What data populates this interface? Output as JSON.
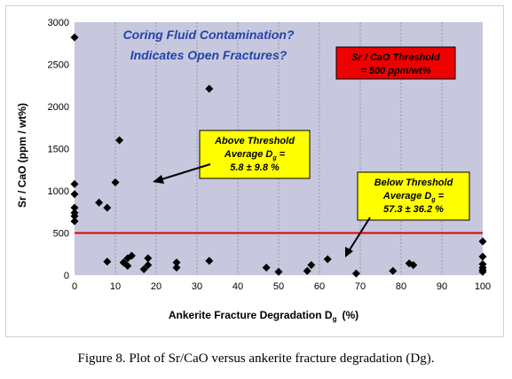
{
  "chart_data": {
    "type": "scatter",
    "xlabel": "Ankerite Fracture Degradation D",
    "xlabel_sub": "g",
    "xlabel_unit": "(%)",
    "ylabel": "Sr / CaO   (ppm / wt%)",
    "xlim": [
      0,
      100
    ],
    "ylim": [
      0,
      3000
    ],
    "x_ticks": [
      0,
      10,
      20,
      30,
      40,
      50,
      60,
      70,
      80,
      90,
      100
    ],
    "y_ticks": [
      0,
      500,
      1000,
      1500,
      2000,
      2500,
      3000
    ],
    "grid": "vertical",
    "threshold": {
      "value": 500,
      "color": "#e00000"
    },
    "annotations": {
      "question_line1": "Coring Fluid Contamination?",
      "question_line2": "Indicates Open Fractures?",
      "red_box_line1": "Sr / CaO Threshold",
      "red_box_line2": "= 500 ppm/wt%",
      "above_title": "Above Threshold",
      "above_avg_label": "Average D",
      "above_avg_sub": "g",
      "above_avg_eq": " =",
      "above_value": "5.8 ± 9.8 %",
      "below_title": "Below Threshold",
      "below_avg_label": "Average D",
      "below_avg_sub": "g",
      "below_avg_eq": " =",
      "below_value": "57.3 ± 36.2 %"
    },
    "colors": {
      "plot_bg": "#c7c7de",
      "point": "#000000",
      "question_text": "#2244aa",
      "red_box": "#ee0000",
      "yellow_box": "#ffff00"
    },
    "points": [
      [
        0,
        2820
      ],
      [
        0,
        1080
      ],
      [
        0,
        960
      ],
      [
        0,
        800
      ],
      [
        0,
        740
      ],
      [
        0,
        700
      ],
      [
        0,
        640
      ],
      [
        6,
        860
      ],
      [
        8,
        800
      ],
      [
        8,
        160
      ],
      [
        10,
        1100
      ],
      [
        11,
        1600
      ],
      [
        12,
        150
      ],
      [
        13,
        110
      ],
      [
        13,
        200
      ],
      [
        14,
        230
      ],
      [
        17,
        70
      ],
      [
        18,
        200
      ],
      [
        18,
        120
      ],
      [
        25,
        150
      ],
      [
        25,
        90
      ],
      [
        33,
        2210
      ],
      [
        33,
        170
      ],
      [
        47,
        90
      ],
      [
        50,
        40
      ],
      [
        57,
        50
      ],
      [
        58,
        120
      ],
      [
        62,
        190
      ],
      [
        69,
        20
      ],
      [
        78,
        50
      ],
      [
        82,
        140
      ],
      [
        83,
        120
      ],
      [
        100,
        400
      ],
      [
        100,
        220
      ],
      [
        100,
        130
      ],
      [
        100,
        90
      ],
      [
        100,
        60
      ],
      [
        100,
        40
      ]
    ]
  },
  "caption": "Figure 8.  Plot of Sr/CaO versus ankerite fracture degradation (Dg)."
}
